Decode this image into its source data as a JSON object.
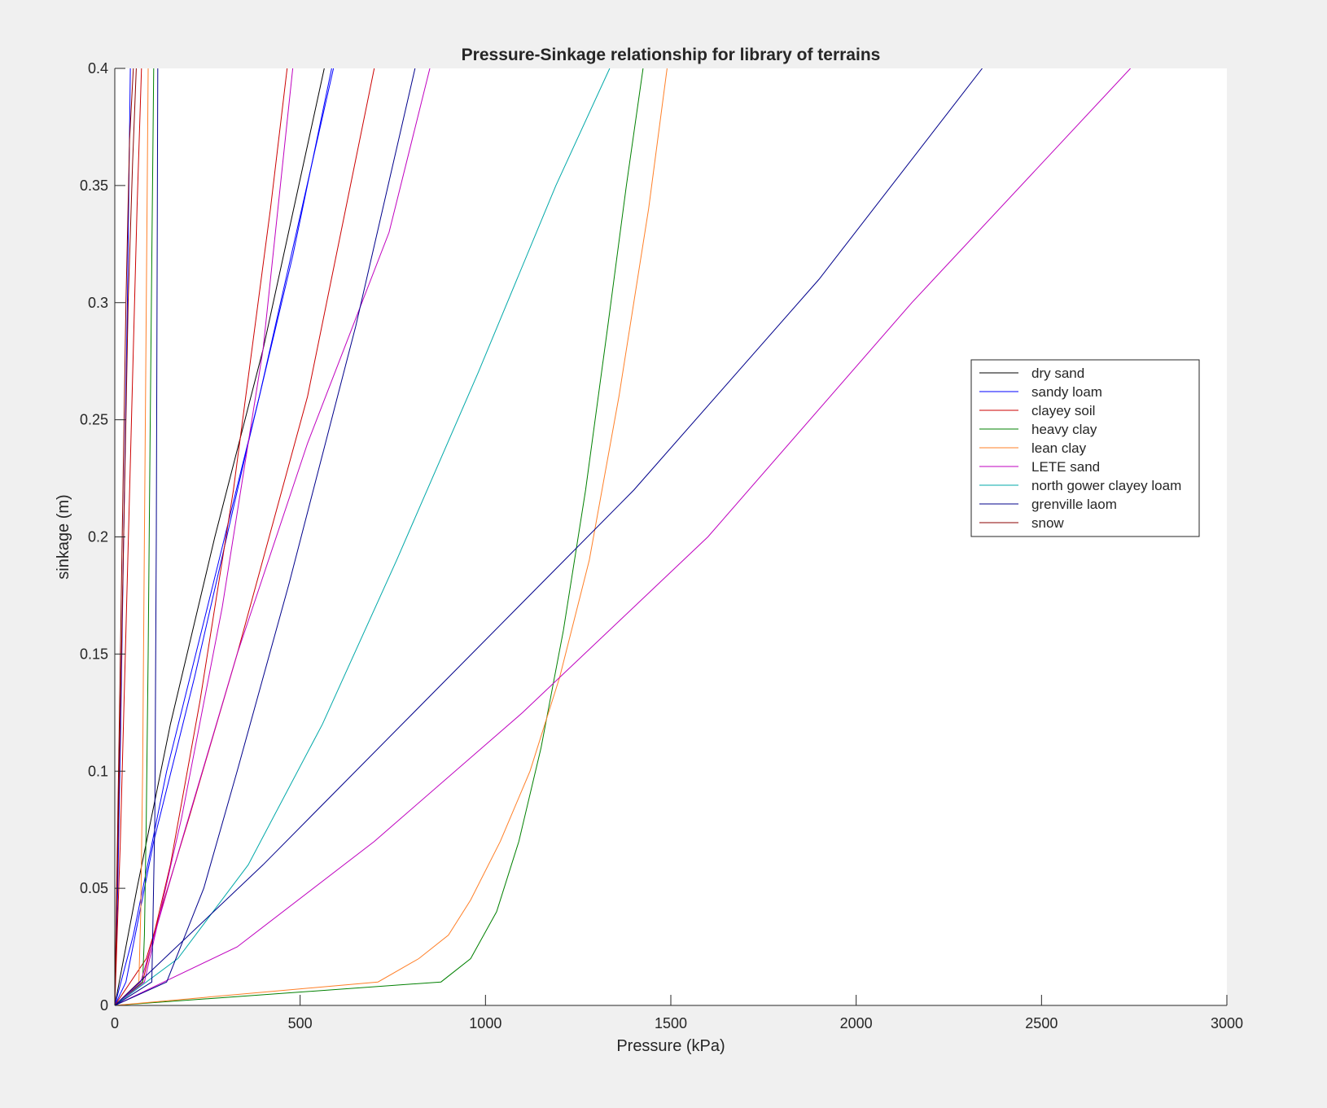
{
  "chart_data": {
    "type": "line",
    "title": "Pressure-Sinkage relationship for library of terrains",
    "xlabel": "Pressure (kPa)",
    "ylabel": "sinkage (m)",
    "xlim": [
      0,
      3000
    ],
    "ylim": [
      0,
      0.4
    ],
    "xticks": [
      "0",
      "500",
      "1000",
      "1500",
      "2000",
      "2500",
      "3000"
    ],
    "yticks": [
      "0",
      "0.05",
      "0.1",
      "0.15",
      "0.2",
      "0.25",
      "0.3",
      "0.35",
      "0.4"
    ],
    "grid": false,
    "legend_position": "right",
    "legend": [
      {
        "label": "dry sand",
        "color": "#000000"
      },
      {
        "label": "sandy loam",
        "color": "#0000ff"
      },
      {
        "label": "clayey soil",
        "color": "#cc0000"
      },
      {
        "label": "heavy clay",
        "color": "#008000"
      },
      {
        "label": "lean clay",
        "color": "#ff7f27"
      },
      {
        "label": "LETE sand",
        "color": "#bf00bf"
      },
      {
        "label": "north gower clayey loam",
        "color": "#00a8a8"
      },
      {
        "label": "grenville laom",
        "color": "#00008b"
      },
      {
        "label": "snow",
        "color": "#8b0000"
      }
    ],
    "series": [
      {
        "color": "#000000",
        "x": [
          0,
          60,
          150,
          270,
          400,
          565
        ],
        "y": [
          0,
          0.05,
          0.12,
          0.2,
          0.28,
          0.4
        ]
      },
      {
        "color": "#0000ff",
        "x": [
          0,
          8,
          16,
          24,
          34,
          42
        ],
        "y": [
          0,
          0.05,
          0.12,
          0.2,
          0.3,
          0.4
        ]
      },
      {
        "color": "#0000ff",
        "x": [
          0,
          50,
          140,
          250,
          390,
          590
        ],
        "y": [
          0,
          0.03,
          0.1,
          0.17,
          0.26,
          0.4
        ]
      },
      {
        "color": "#0000ff",
        "x": [
          0,
          30,
          105,
          215,
          360,
          480,
          585
        ],
        "y": [
          0,
          0.01,
          0.07,
          0.14,
          0.24,
          0.32,
          0.4
        ]
      },
      {
        "color": "#cc0000",
        "x": [
          0,
          15,
          30,
          45,
          60,
          72
        ],
        "y": [
          0,
          0.07,
          0.16,
          0.25,
          0.34,
          0.4
        ]
      },
      {
        "color": "#cc0000",
        "x": [
          0,
          75,
          150,
          230,
          320,
          420,
          465
        ],
        "y": [
          0,
          0.01,
          0.06,
          0.13,
          0.22,
          0.34,
          0.4
        ]
      },
      {
        "color": "#cc0000",
        "x": [
          0,
          85,
          200,
          330,
          520,
          700
        ],
        "y": [
          0,
          0.02,
          0.08,
          0.15,
          0.26,
          0.4
        ]
      },
      {
        "color": "#008000",
        "x": [
          0,
          880,
          960,
          1030,
          1090,
          1150,
          1210,
          1270,
          1330,
          1380,
          1425
        ],
        "y": [
          0,
          0.01,
          0.02,
          0.04,
          0.07,
          0.11,
          0.16,
          0.22,
          0.29,
          0.35,
          0.4
        ]
      },
      {
        "color": "#008000",
        "x": [
          0,
          75,
          80,
          85,
          90,
          95,
          100,
          105
        ],
        "y": [
          0,
          0.01,
          0.03,
          0.08,
          0.15,
          0.24,
          0.32,
          0.4
        ]
      },
      {
        "color": "#ff7f27",
        "x": [
          0,
          710,
          820,
          900,
          960,
          1040,
          1120,
          1200,
          1280,
          1360,
          1440,
          1490
        ],
        "y": [
          0,
          0.01,
          0.02,
          0.03,
          0.045,
          0.07,
          0.1,
          0.14,
          0.19,
          0.26,
          0.34,
          0.4
        ]
      },
      {
        "color": "#ff7f27",
        "x": [
          0,
          65,
          70,
          75,
          80,
          85,
          90
        ],
        "y": [
          0,
          0.01,
          0.04,
          0.1,
          0.2,
          0.3,
          0.4
        ]
      },
      {
        "color": "#bf00bf",
        "x": [
          0,
          70,
          180,
          330,
          520,
          740,
          850
        ],
        "y": [
          0,
          0.01,
          0.07,
          0.15,
          0.24,
          0.33,
          0.4
        ]
      },
      {
        "color": "#bf00bf",
        "x": [
          0,
          80,
          180,
          290,
          400,
          480
        ],
        "y": [
          0,
          0.01,
          0.08,
          0.17,
          0.28,
          0.4
        ]
      },
      {
        "color": "#bf00bf",
        "x": [
          0,
          330,
          700,
          1100,
          1600,
          2150,
          2740
        ],
        "y": [
          0,
          0.025,
          0.07,
          0.125,
          0.2,
          0.3,
          0.4
        ]
      },
      {
        "color": "#00a8a8",
        "x": [
          0,
          170,
          360,
          560,
          760,
          980,
          1190,
          1335
        ],
        "y": [
          0,
          0.02,
          0.06,
          0.12,
          0.19,
          0.27,
          0.35,
          0.4
        ]
      },
      {
        "color": "#00008b",
        "x": [
          0,
          400,
          900,
          1400,
          1900,
          2340
        ],
        "y": [
          0,
          0.06,
          0.14,
          0.22,
          0.31,
          0.4
        ]
      },
      {
        "color": "#00008b",
        "x": [
          0,
          140,
          240,
          330,
          470,
          650,
          810
        ],
        "y": [
          0,
          0.01,
          0.05,
          0.1,
          0.18,
          0.29,
          0.4
        ]
      },
      {
        "color": "#00008b",
        "x": [
          0,
          100,
          108,
          112,
          114,
          116
        ],
        "y": [
          0,
          0.01,
          0.08,
          0.2,
          0.3,
          0.4
        ]
      },
      {
        "color": "#8b0000",
        "x": [
          0,
          12,
          24,
          36,
          48,
          58
        ],
        "y": [
          0,
          0.1,
          0.2,
          0.3,
          0.36,
          0.4
        ]
      },
      {
        "color": "#8b0000",
        "x": [
          0,
          10,
          20,
          30,
          40,
          50
        ],
        "y": [
          0,
          0.1,
          0.2,
          0.3,
          0.37,
          0.4
        ]
      }
    ]
  }
}
